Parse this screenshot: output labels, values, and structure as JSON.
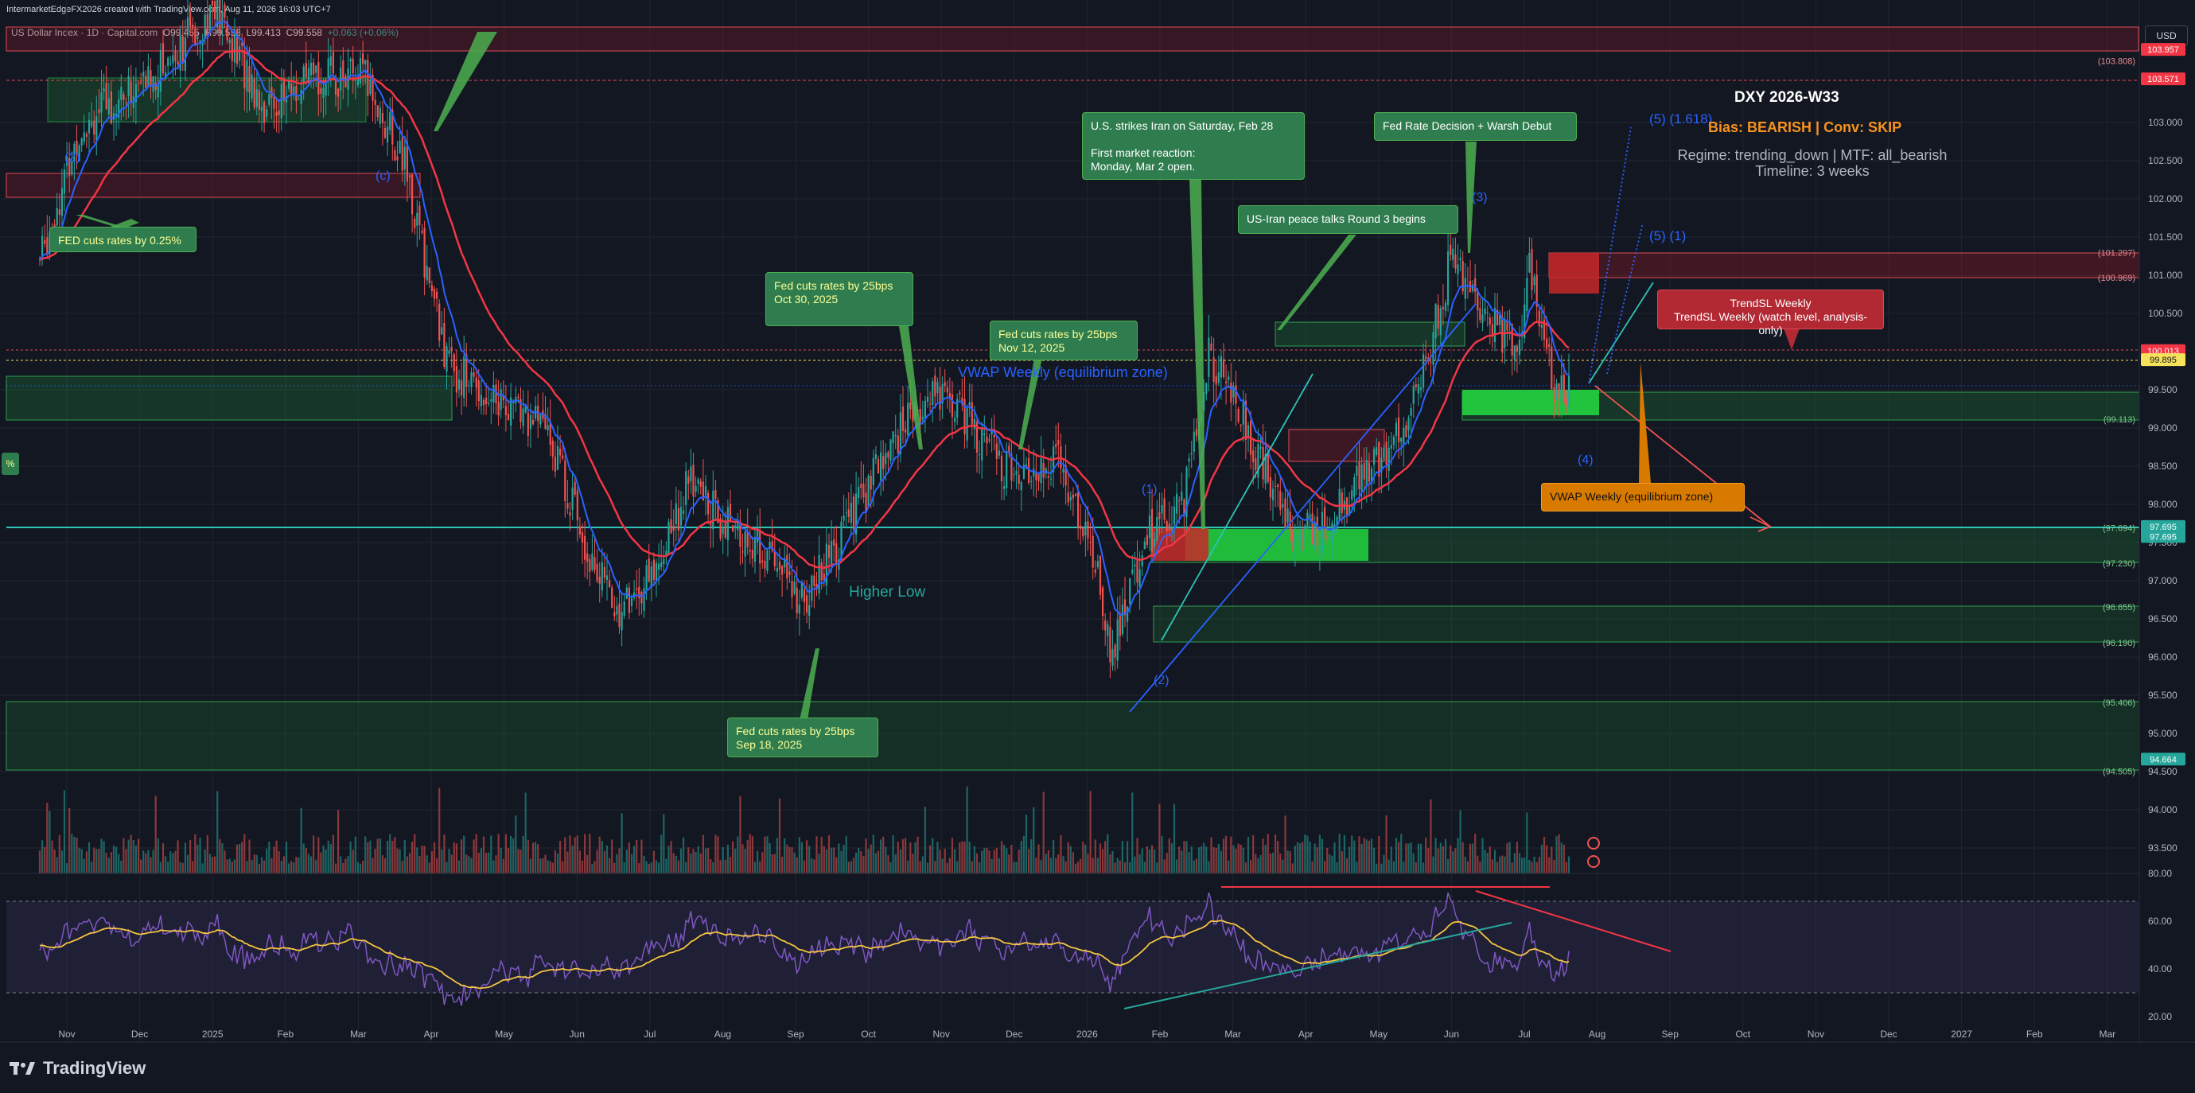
{
  "header": {
    "created_line": "IntermarketEdgeFX2026 created with TradingView.com, Aug 11, 2026 16:03 UTC+7",
    "symbol": "US Dollar Index · 1D · Capital.com",
    "open": "O99.455",
    "high": "H99.593",
    "low": "L99.413",
    "close": "C99.558",
    "change": "+0.063 (+0.06%)",
    "currency": "USD"
  },
  "info_panel": {
    "title": "DXY 2026-W33",
    "bias": "Bias: BEARISH | Conv: SKIP",
    "regime": "Regime: trending_down | MTF: all_bearish",
    "timeline": "Timeline: 3 weeks"
  },
  "annotations": {
    "fed_cuts_025": "FED cuts rates by 0.25%",
    "fed_cuts_oct": "Fed cuts rates by 25bps\nOct 30, 2025",
    "fed_cuts_nov": "Fed cuts rates by 25bps\nNov 12, 2025",
    "fed_cuts_sep": "Fed cuts rates by 25bps\nSep 18, 2025",
    "us_strikes_iran": "U.S. strikes Iran on Saturday, Feb 28\n\nFirst market reaction:\nMonday, Mar 2 open.",
    "peace_talks": "US-Iran peace talks Round 3 begins",
    "fed_warsh": "Fed Rate Decision + Warsh Debut",
    "trendsl": "TrendSL Weekly\nTrendSL Weekly (watch level, analysis-only)",
    "vwap_box": "VWAP Weekly (equilibrium zone)",
    "vwap_text": "VWAP Weekly (equilibrium zone)",
    "higher_low": "Higher Low"
  },
  "wave_labels": {
    "w2_left": "(2)",
    "wc": "(c)",
    "w1": "(1)",
    "w2": "(2)",
    "w3": "(3)",
    "w4": "(4)",
    "w5_1618": "(5) (1.618)",
    "w5_1": "(5) (1)"
  },
  "price_axis": {
    "ticks": [
      "103.000",
      "102.500",
      "102.000",
      "101.500",
      "101.000",
      "100.500",
      "99.500",
      "99.000",
      "98.500",
      "98.000",
      "97.500",
      "97.000",
      "96.500",
      "96.000",
      "95.500",
      "95.000",
      "94.500",
      "94.000",
      "93.500"
    ],
    "level_tags": [
      {
        "text": "103.957",
        "kind": "red"
      },
      {
        "text": "103.571",
        "kind": "red"
      },
      {
        "text": "100.013",
        "kind": "red"
      },
      {
        "text": "99.895",
        "kind": "yellow"
      },
      {
        "text": "97.695",
        "kind": "teal"
      },
      {
        "text": "97.695",
        "kind": "teal"
      },
      {
        "text": "94.664",
        "kind": "teal"
      }
    ],
    "zone_labels": [
      "(103.808)",
      "(101.297)",
      "(100.969)",
      "(99.113)",
      "(97.694)",
      "(97.230)",
      "(96.655)",
      "(96.190)",
      "(95.406)",
      "(94.505)"
    ]
  },
  "rsi_axis": {
    "ticks": [
      "80.00",
      "60.00",
      "40.00",
      "20.00"
    ]
  },
  "time_axis": {
    "labels": [
      "Nov",
      "Dec",
      "2025",
      "Feb",
      "Mar",
      "Apr",
      "May",
      "Jun",
      "Jul",
      "Aug",
      "Sep",
      "Oct",
      "Nov",
      "Dec",
      "2026",
      "Feb",
      "Mar",
      "Apr",
      "May",
      "Jun",
      "Jul",
      "Aug",
      "Sep",
      "Oct",
      "Nov",
      "Dec",
      "2027",
      "Feb",
      "Mar"
    ]
  },
  "branding": {
    "logo_text": "TradingView"
  },
  "colors": {
    "background": "#131722",
    "bull": "#26a69a",
    "bear": "#ef5350",
    "ema_red": "#f23645",
    "vwap_blue": "#2962ff",
    "zone_green": "#1e8a3a",
    "zone_red": "#b71c2b",
    "teal_line": "#2ec4b6"
  },
  "chart_data": {
    "type": "candlestick",
    "instrument": "US Dollar Index",
    "timeframe": "1D",
    "x_range": [
      "Nov 2024",
      "Mar 2027"
    ],
    "y_range": [
      93.3,
      104.0
    ],
    "ohlc_last": {
      "open": 99.455,
      "high": 99.593,
      "low": 99.413,
      "close": 99.558
    },
    "close_path": {
      "dates": [
        "2024-10-28",
        "2024-11-15",
        "2024-12-15",
        "2025-01-10",
        "2025-02-01",
        "2025-02-25",
        "2025-03-15",
        "2025-04-01",
        "2025-04-20",
        "2025-05-10",
        "2025-06-01",
        "2025-06-20",
        "2025-07-01",
        "2025-07-15",
        "2025-08-01",
        "2025-08-20",
        "2025-09-05",
        "2025-09-18",
        "2025-10-05",
        "2025-10-30",
        "2025-11-12",
        "2025-11-25",
        "2025-12-15",
        "2026-01-05",
        "2026-01-22",
        "2026-01-27",
        "2026-02-10",
        "2026-02-27",
        "2026-03-10",
        "2026-03-25",
        "2026-04-10",
        "2026-04-25",
        "2026-05-15",
        "2026-06-01",
        "2026-06-12",
        "2026-06-22",
        "2026-07-01",
        "2026-07-20",
        "2026-07-25",
        "2026-08-05",
        "2026-08-11"
      ],
      "close": [
        101.2,
        103.0,
        103.6,
        104.5,
        103.2,
        103.6,
        103.6,
        102.5,
        99.8,
        99.4,
        99.0,
        97.3,
        96.6,
        97.0,
        98.3,
        97.6,
        97.3,
        96.7,
        97.6,
        99.0,
        99.5,
        99.2,
        98.4,
        98.6,
        97.2,
        96.0,
        97.5,
        98.0,
        100.0,
        99.1,
        97.9,
        97.6,
        98.4,
        98.9,
        100.0,
        101.3,
        100.6,
        100.0,
        101.1,
        99.4,
        99.56
      ]
    },
    "levels": {
      "resistance_zone": [
        100.969,
        101.297
      ],
      "red_lines": [
        103.957,
        103.571,
        100.013
      ],
      "yellow_line": 99.895,
      "vwap_zone": [
        99.113,
        99.4
      ],
      "support_zone_1": [
        97.23,
        97.694
      ],
      "support_zone_2": [
        96.19,
        96.655
      ],
      "support_zone_3": [
        94.505,
        95.406
      ]
    },
    "rsi": {
      "ylim": [
        20,
        80
      ],
      "last": 40
    }
  }
}
